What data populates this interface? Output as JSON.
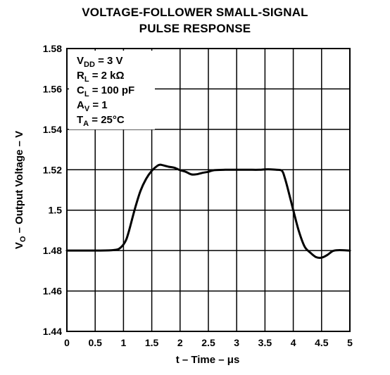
{
  "chart_data": {
    "type": "line",
    "title_line1": "VOLTAGE-FOLLOWER SMALL-SIGNAL",
    "title_line2": "PULSE RESPONSE",
    "xlabel": "t – Time – μs",
    "ylabel_main": "V",
    "ylabel_sub": "O",
    "ylabel_rest": " – Output Voltage – V",
    "xlim": [
      0,
      5
    ],
    "ylim": [
      1.44,
      1.58
    ],
    "x_ticks": [
      "0",
      "0.5",
      "1",
      "1.5",
      "2",
      "2.5",
      "3",
      "3.5",
      "4",
      "4.5",
      "5"
    ],
    "y_ticks": [
      "1.58",
      "1.56",
      "1.54",
      "1.52",
      "1.5",
      "1.48",
      "1.46",
      "1.44"
    ],
    "grid": true,
    "conditions": [
      {
        "main": "V",
        "sub": "DD",
        "rest": " = 3 V"
      },
      {
        "main": "R",
        "sub": "L",
        "rest": " = 2 kΩ"
      },
      {
        "main": "C",
        "sub": "L",
        "rest": " = 100 pF"
      },
      {
        "main": "A",
        "sub": "V",
        "rest": " = 1"
      },
      {
        "main": "T",
        "sub": "A",
        "rest": " = 25°C"
      }
    ],
    "series": [
      {
        "x": [
          0,
          0.5,
          0.8,
          0.9,
          0.95,
          1.0,
          1.05,
          1.1,
          1.2,
          1.3,
          1.4,
          1.5,
          1.6,
          1.65,
          1.7,
          1.8,
          1.9,
          2.0,
          2.1,
          2.2,
          2.3,
          2.4,
          2.5,
          2.6,
          2.8,
          3.0,
          3.2,
          3.4,
          3.5,
          3.6,
          3.7,
          3.8,
          3.85,
          3.9,
          4.0,
          4.1,
          4.2,
          4.3,
          4.4,
          4.5,
          4.6,
          4.7,
          4.8,
          5.0
        ],
        "y": [
          1.48,
          1.48,
          1.4802,
          1.4806,
          1.4815,
          1.483,
          1.4855,
          1.49,
          1.5005,
          1.5095,
          1.5155,
          1.5195,
          1.522,
          1.5225,
          1.5222,
          1.5215,
          1.521,
          1.5198,
          1.519,
          1.5177,
          1.5178,
          1.5185,
          1.519,
          1.5198,
          1.52,
          1.52,
          1.52,
          1.52,
          1.5202,
          1.5202,
          1.52,
          1.5195,
          1.516,
          1.511,
          1.5,
          1.4895,
          1.482,
          1.479,
          1.4768,
          1.4765,
          1.4778,
          1.4798,
          1.4802,
          1.48
        ]
      }
    ]
  }
}
